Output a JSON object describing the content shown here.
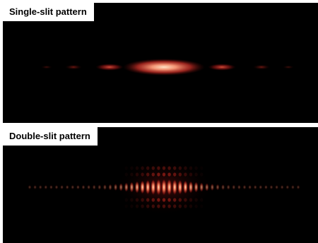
{
  "panels": [
    {
      "title": "Single-slit pattern",
      "type": "single-slit"
    },
    {
      "title": "Double-slit pattern",
      "type": "double-slit"
    }
  ],
  "colors": {
    "background": "#000000",
    "fringe_core": "#ffd9b8",
    "fringe_mid": "#ff6a4a",
    "fringe_edge": "#8a1010"
  }
}
